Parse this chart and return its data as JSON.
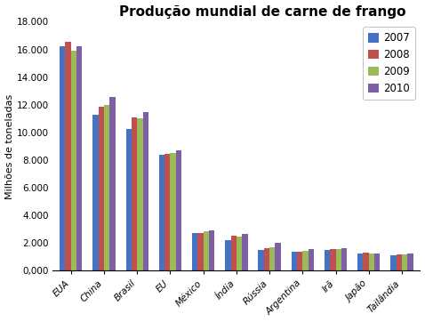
{
  "title": "Produção mundial de carne de frango",
  "ylabel": "Milhões de toneladas",
  "categories": [
    "EUA",
    "China",
    "Brasil",
    "EU",
    "México",
    "Índia",
    "Rússia",
    "Argentina",
    "Irã",
    "Japão",
    "Tailândia"
  ],
  "years": [
    "2007",
    "2008",
    "2009",
    "2010"
  ],
  "values": {
    "EUA": [
      16200,
      16561,
      15930,
      16200
    ],
    "China": [
      11300,
      11840,
      12000,
      12550
    ],
    "Brasil": [
      10250,
      11100,
      11000,
      11500
    ],
    "EU": [
      8350,
      8450,
      8500,
      8700
    ],
    "México": [
      2700,
      2750,
      2850,
      2900
    ],
    "Índia": [
      2200,
      2500,
      2450,
      2650
    ],
    "Rússia": [
      1500,
      1650,
      1700,
      2000
    ],
    "Argentina": [
      1350,
      1400,
      1450,
      1550
    ],
    "Irã": [
      1500,
      1550,
      1550,
      1600
    ],
    "Japão": [
      1250,
      1280,
      1250,
      1270
    ],
    "Tailândia": [
      1100,
      1150,
      1200,
      1250
    ]
  },
  "colors": [
    "#4472C4",
    "#C0504D",
    "#9BBB59",
    "#7E5FA6"
  ],
  "ylim": [
    0,
    18000
  ],
  "yticks": [
    0,
    2000,
    4000,
    6000,
    8000,
    10000,
    12000,
    14000,
    16000,
    18000
  ],
  "background_color": "#ffffff",
  "title_fontsize": 11,
  "axis_fontsize": 8,
  "tick_fontsize": 7.5,
  "legend_fontsize": 8.5
}
